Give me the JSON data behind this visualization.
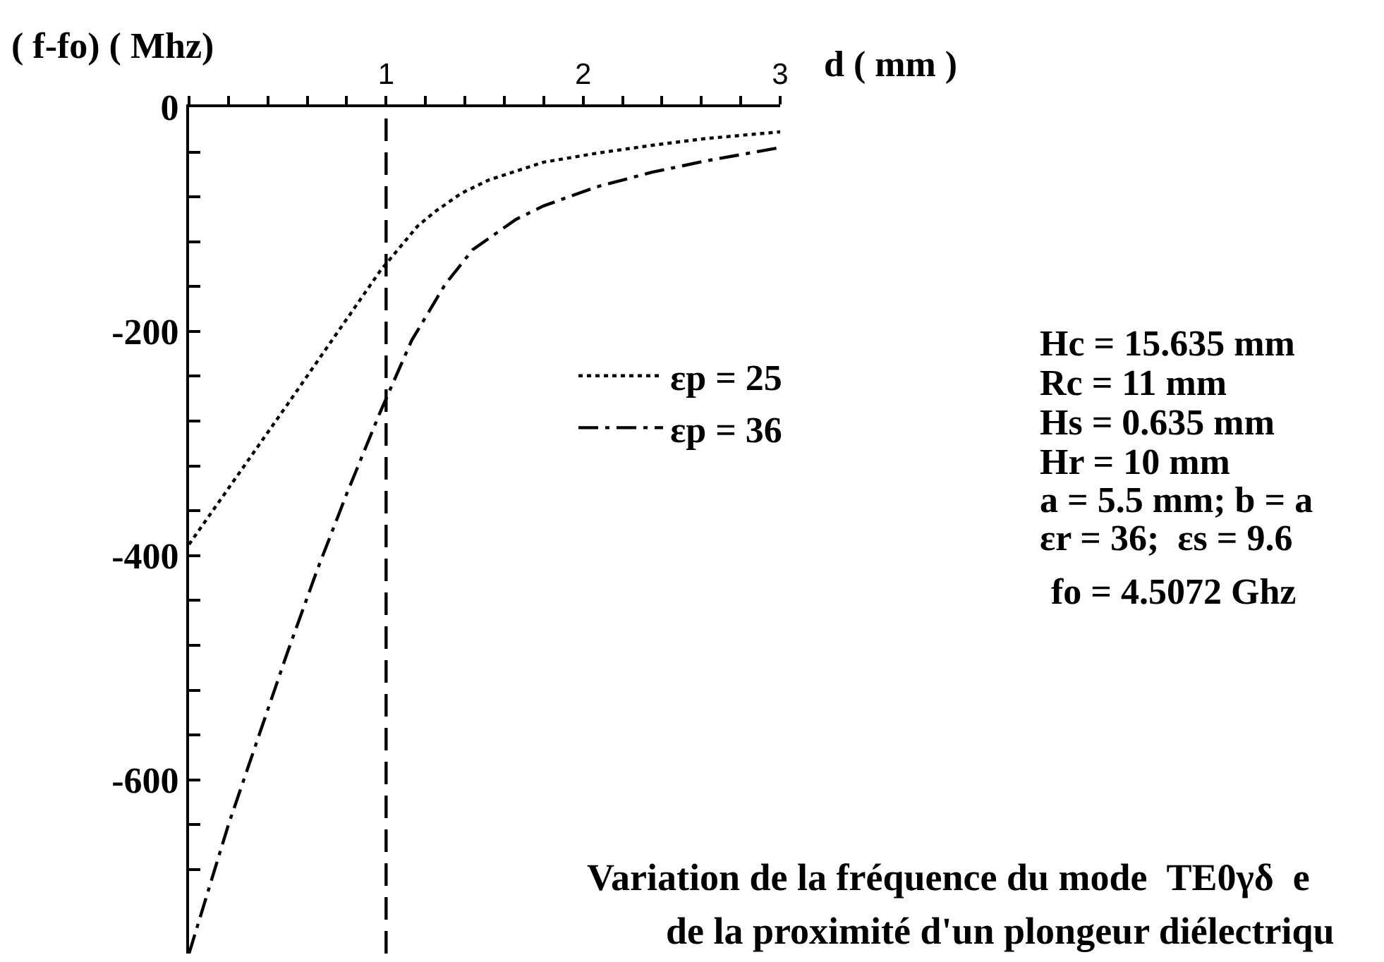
{
  "chart_data": {
    "type": "line",
    "xlabel": "d ( mm )",
    "ylabel": "( f-fo) ( Mhz)",
    "xlim": [
      0,
      3
    ],
    "xticks": [
      {
        "value": 0,
        "label": null
      },
      {
        "value": 0.2,
        "label": null
      },
      {
        "value": 0.4,
        "label": null
      },
      {
        "value": 0.6,
        "label": null
      },
      {
        "value": 0.8,
        "label": null
      },
      1,
      {
        "value": 1.2,
        "label": null
      },
      {
        "value": 1.4,
        "label": null
      },
      {
        "value": 1.6,
        "label": null
      },
      {
        "value": 1.8,
        "label": null
      },
      2,
      {
        "value": 2.2,
        "label": null
      },
      {
        "value": 2.4,
        "label": null
      },
      {
        "value": 2.6,
        "label": null
      },
      {
        "value": 2.8,
        "label": null
      },
      3
    ],
    "ylim": [
      -755,
      0
    ],
    "yticks": [
      0,
      {
        "value": -40,
        "label": null
      },
      {
        "value": -80,
        "label": null
      },
      {
        "value": -120,
        "label": null
      },
      {
        "value": -160,
        "label": null
      },
      -200,
      {
        "value": -240,
        "label": null
      },
      {
        "value": -280,
        "label": null
      },
      {
        "value": -320,
        "label": null
      },
      {
        "value": -360,
        "label": null
      },
      -400,
      {
        "value": -440,
        "label": null
      },
      {
        "value": -480,
        "label": null
      },
      {
        "value": -520,
        "label": null
      },
      {
        "value": -560,
        "label": null
      },
      -600,
      {
        "value": -640,
        "label": null
      },
      {
        "value": -680,
        "label": null
      }
    ],
    "series": [
      {
        "name": "εp = 25",
        "color": "#000000",
        "line_style": "dotted",
        "x": [
          0,
          0.5,
          0.97,
          1.07,
          1.16,
          1.25,
          1.38,
          1.52,
          1.8,
          2.07,
          2.35,
          2.62,
          3
        ],
        "values": [
          -390,
          -265,
          -146,
          -125,
          -106,
          -93,
          -77,
          -65,
          -49,
          -41,
          -34,
          -28,
          -22
        ]
      },
      {
        "name": "εp = 36",
        "color": "#000000",
        "line_style": "dashdot",
        "x": [
          0,
          0.2,
          0.34,
          0.5,
          0.65,
          0.8,
          0.97,
          1.13,
          1.3,
          1.44,
          1.66,
          1.8,
          2.07,
          2.35,
          2.62,
          3
        ],
        "values": [
          -755,
          -640,
          -568,
          -486,
          -413,
          -345,
          -272,
          -208,
          -158,
          -127,
          -100,
          -88,
          -71,
          -58,
          -48,
          -36
        ]
      }
    ],
    "ref_lines": [
      {
        "axis": "x",
        "value": 1,
        "color": "#000000",
        "line_style": "dashed"
      }
    ],
    "legend": "right",
    "annotations": [
      "Hc = 15.635 mm",
      "Rc = 11 mm",
      "Hs = 0.635 mm",
      "Hr = 10 mm",
      "a = 5.5 mm; b = a",
      "εr = 36;  εs = 9.6",
      "fo = 4.5072 Ghz",
      "Variation de la fréquence du mode  TE0γδ  e",
      "de la proximité d'un plongeur diélectriqu"
    ]
  }
}
